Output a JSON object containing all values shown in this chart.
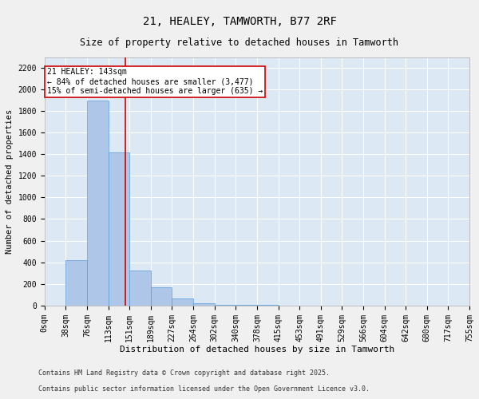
{
  "title": "21, HEALEY, TAMWORTH, B77 2RF",
  "subtitle": "Size of property relative to detached houses in Tamworth",
  "xlabel": "Distribution of detached houses by size in Tamworth",
  "ylabel": "Number of detached properties",
  "footnote1": "Contains HM Land Registry data © Crown copyright and database right 2025.",
  "footnote2": "Contains public sector information licensed under the Open Government Licence v3.0.",
  "bin_labels": [
    "0sqm",
    "38sqm",
    "76sqm",
    "113sqm",
    "151sqm",
    "189sqm",
    "227sqm",
    "264sqm",
    "302sqm",
    "340sqm",
    "378sqm",
    "415sqm",
    "453sqm",
    "491sqm",
    "529sqm",
    "566sqm",
    "604sqm",
    "642sqm",
    "680sqm",
    "717sqm",
    "755sqm"
  ],
  "bar_values": [
    0,
    420,
    1900,
    1420,
    320,
    170,
    60,
    20,
    5,
    2,
    1,
    0,
    0,
    0,
    0,
    0,
    0,
    0,
    0,
    0
  ],
  "bar_color": "#aec6e8",
  "bar_edge_color": "#5b9bd5",
  "background_color": "#dce9f5",
  "grid_color": "#ffffff",
  "annotation_text": "21 HEALEY: 143sqm\n← 84% of detached houses are smaller (3,477)\n15% of semi-detached houses are larger (635) →",
  "annotation_box_color": "#ffffff",
  "annotation_box_edge": "#cc0000",
  "vline_color": "#cc0000",
  "ylim": [
    0,
    2300
  ],
  "yticks": [
    0,
    200,
    400,
    600,
    800,
    1000,
    1200,
    1400,
    1600,
    1800,
    2000,
    2200
  ],
  "title_fontsize": 10,
  "subtitle_fontsize": 8.5,
  "xlabel_fontsize": 8,
  "ylabel_fontsize": 7.5,
  "tick_fontsize": 7,
  "annot_fontsize": 7,
  "footnote_fontsize": 6
}
